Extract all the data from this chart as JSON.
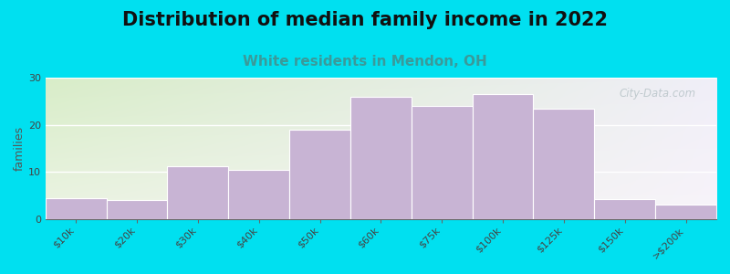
{
  "title": "Distribution of median family income in 2022",
  "subtitle": "White residents in Mendon, OH",
  "categories": [
    "$10k",
    "$20k",
    "$30k",
    "$40k",
    "$50k",
    "$60k",
    "$75k",
    "$100k",
    "$125k",
    "$150k",
    ">$200k"
  ],
  "values": [
    4.5,
    4.0,
    11.2,
    10.5,
    19.0,
    26.0,
    24.0,
    26.5,
    23.5,
    4.3,
    3.0
  ],
  "bar_color": "#c8b4d4",
  "bar_edgecolor": "#ffffff",
  "ylabel": "families",
  "ylim": [
    0,
    30
  ],
  "yticks": [
    0,
    10,
    20,
    30
  ],
  "background_outer": "#00e0f0",
  "background_plot_left_top": "#d8edc8",
  "background_plot_right_bottom": "#f8f4fa",
  "title_fontsize": 15,
  "subtitle_fontsize": 11,
  "subtitle_color": "#3a9a9a",
  "ylabel_fontsize": 9,
  "tick_fontsize": 8,
  "watermark": "City-Data.com",
  "watermark_color": "#b8c4c8"
}
